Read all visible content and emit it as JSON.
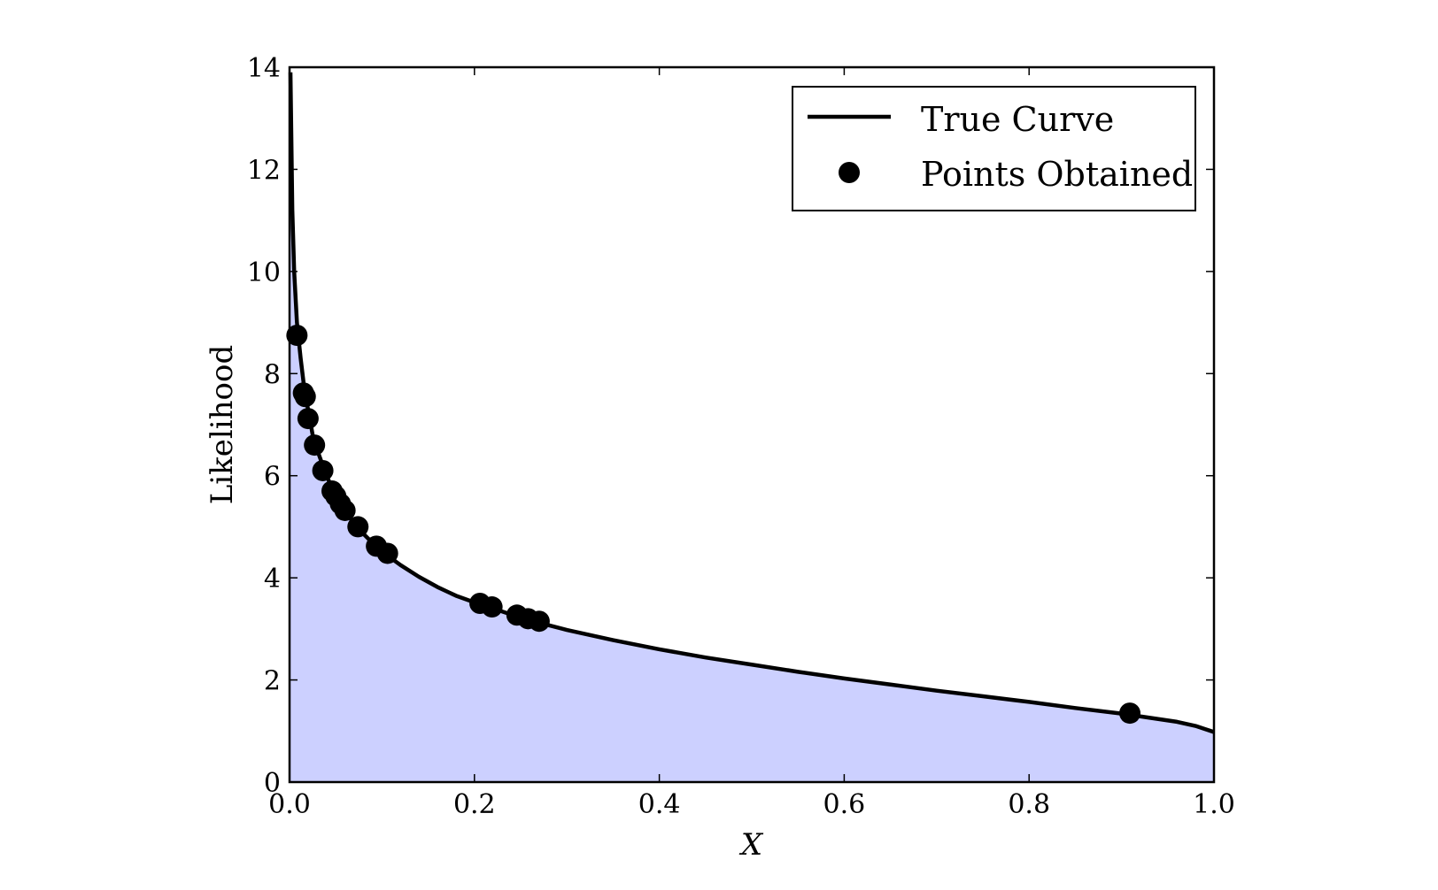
{
  "chart_data": {
    "type": "line",
    "title": "",
    "xlabel": "X",
    "ylabel": "Likelihood",
    "xlim": [
      0.0,
      1.0
    ],
    "ylim": [
      0,
      14
    ],
    "xticks": [
      "0.0",
      "0.2",
      "0.4",
      "0.6",
      "0.8",
      "1.0"
    ],
    "yticks": [
      "0",
      "2",
      "4",
      "6",
      "8",
      "10",
      "12",
      "14"
    ],
    "grid": false,
    "legend_position": "top-right",
    "fill_color": "#ccd0ff",
    "line_color": "#000000",
    "series": [
      {
        "name": "True Curve",
        "type": "line",
        "filled": true,
        "x": [
          0.001,
          0.003,
          0.005,
          0.008,
          0.012,
          0.016,
          0.02,
          0.025,
          0.03,
          0.04,
          0.05,
          0.06,
          0.075,
          0.09,
          0.105,
          0.12,
          0.14,
          0.16,
          0.18,
          0.2,
          0.22,
          0.25,
          0.27,
          0.3,
          0.35,
          0.4,
          0.45,
          0.5,
          0.55,
          0.6,
          0.65,
          0.7,
          0.75,
          0.8,
          0.85,
          0.9,
          0.93,
          0.96,
          0.98,
          0.99,
          1.0
        ],
        "y": [
          13.9,
          11.2,
          10.0,
          9.0,
          8.3,
          7.7,
          7.3,
          6.8,
          6.5,
          6.0,
          5.6,
          5.3,
          4.95,
          4.68,
          4.45,
          4.25,
          4.02,
          3.82,
          3.65,
          3.52,
          3.4,
          3.22,
          3.12,
          2.98,
          2.78,
          2.6,
          2.44,
          2.3,
          2.16,
          2.03,
          1.91,
          1.79,
          1.68,
          1.57,
          1.45,
          1.34,
          1.26,
          1.18,
          1.1,
          1.04,
          0.98
        ]
      },
      {
        "name": "Points Obtained",
        "type": "scatter",
        "x": [
          0.008,
          0.015,
          0.017,
          0.02,
          0.027,
          0.036,
          0.046,
          0.05,
          0.055,
          0.06,
          0.074,
          0.094,
          0.106,
          0.206,
          0.219,
          0.246,
          0.258,
          0.27,
          0.909
        ],
        "y": [
          8.75,
          7.62,
          7.55,
          7.12,
          6.6,
          6.1,
          5.7,
          5.6,
          5.45,
          5.32,
          5.0,
          4.62,
          4.48,
          3.5,
          3.43,
          3.27,
          3.2,
          3.15,
          1.35
        ]
      }
    ]
  }
}
